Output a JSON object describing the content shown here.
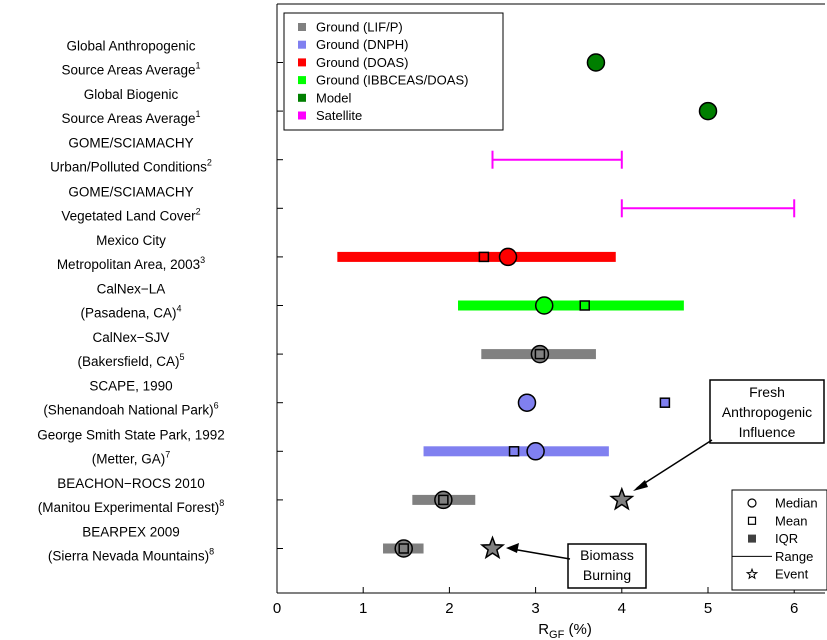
{
  "chart_data": {
    "type": "scatter",
    "xlabel_main": "R",
    "xlabel_sub": "GF",
    "xlabel_unit": " (%)",
    "xlim": [
      0,
      6.4
    ],
    "xticks": [
      "0",
      "1",
      "2",
      "3",
      "4",
      "5",
      "6"
    ],
    "categories": [
      {
        "line1": "Global Anthropogenic",
        "line2": "Source Areas Average",
        "ref": "1"
      },
      {
        "line1": "Global Biogenic",
        "line2": "Source Areas Average",
        "ref": "1"
      },
      {
        "line1": "GOME/SCIAMACHY",
        "line2": "Urban/Polluted Conditions",
        "ref": "2"
      },
      {
        "line1": "GOME/SCIAMACHY",
        "line2": "Vegetated Land Cover",
        "ref": "2"
      },
      {
        "line1": "Mexico City",
        "line2": "Metropolitan Area, 2003",
        "ref": "3"
      },
      {
        "line1": "CalNex−LA",
        "line2": "(Pasadena, CA)",
        "ref": "4"
      },
      {
        "line1": "CalNex−SJV",
        "line2": "(Bakersfield, CA)",
        "ref": "5"
      },
      {
        "line1": "SCAPE, 1990",
        "line2": "(Shenandoah National Park)",
        "ref": "6"
      },
      {
        "line1": "George Smith State Park, 1992",
        "line2": "(Metter, GA)",
        "ref": "7"
      },
      {
        "line1": "BEACHON−ROCS 2010",
        "line2": "(Manitou Experimental Forest)",
        "ref": "8"
      },
      {
        "line1": "BEARPEX 2009",
        "line2": "(Sierra Nevada Mountains)",
        "ref": "8"
      }
    ],
    "series": [
      {
        "name": "Ground (LIF/P)",
        "color": "#808080"
      },
      {
        "name": "Ground (DNPH)",
        "color": "#8080f0"
      },
      {
        "name": "Ground (DOAS)",
        "color": "#ff0000"
      },
      {
        "name": "Ground (IBBCEAS/DOAS)",
        "color": "#00ff00"
      },
      {
        "name": "Model",
        "color": "#007f00"
      },
      {
        "name": "Satellite",
        "color": "#ff00ff"
      }
    ],
    "points": [
      {
        "row": 0,
        "series": 4,
        "median": 3.7
      },
      {
        "row": 1,
        "series": 4,
        "median": 5.0
      },
      {
        "row": 2,
        "series": 5,
        "range": [
          2.5,
          4.0
        ]
      },
      {
        "row": 3,
        "series": 5,
        "range": [
          4.0,
          6.0
        ]
      },
      {
        "row": 4,
        "series": 2,
        "iqr": [
          0.7,
          3.93
        ],
        "median": 2.68,
        "mean": 2.4
      },
      {
        "row": 5,
        "series": 3,
        "iqr": [
          2.1,
          4.72
        ],
        "median": 3.1,
        "mean": 3.57
      },
      {
        "row": 6,
        "series": 0,
        "iqr": [
          2.37,
          3.7
        ],
        "median": 3.05,
        "mean": 3.05
      },
      {
        "row": 7,
        "series": 1,
        "median": 2.9,
        "mean": 4.5
      },
      {
        "row": 8,
        "series": 1,
        "iqr": [
          1.7,
          3.85
        ],
        "median": 3.0,
        "mean": 2.75
      },
      {
        "row": 9,
        "series": 0,
        "iqr": [
          1.57,
          2.3
        ],
        "median": 1.93,
        "mean": 1.93,
        "event": 4.0
      },
      {
        "row": 10,
        "series": 0,
        "iqr": [
          1.23,
          1.7
        ],
        "median": 1.47,
        "mean": 1.47,
        "event": 2.5
      }
    ],
    "annotations": [
      {
        "lines": [
          "Fresh",
          "Anthropogenic",
          "Influence"
        ],
        "row": 9,
        "event": 4.0
      },
      {
        "lines": [
          "Biomass",
          "Burning"
        ],
        "row": 10,
        "event": 2.5
      }
    ],
    "symbol_legend": [
      {
        "symbol": "circle",
        "label": "Median"
      },
      {
        "symbol": "square",
        "label": "Mean"
      },
      {
        "symbol": "filled-square",
        "label": "IQR"
      },
      {
        "symbol": "line",
        "label": "Range"
      },
      {
        "symbol": "star",
        "label": "Event"
      }
    ],
    "series_legend_position": "top-left",
    "symbol_legend_position": "bottom-right",
    "grid": false
  }
}
